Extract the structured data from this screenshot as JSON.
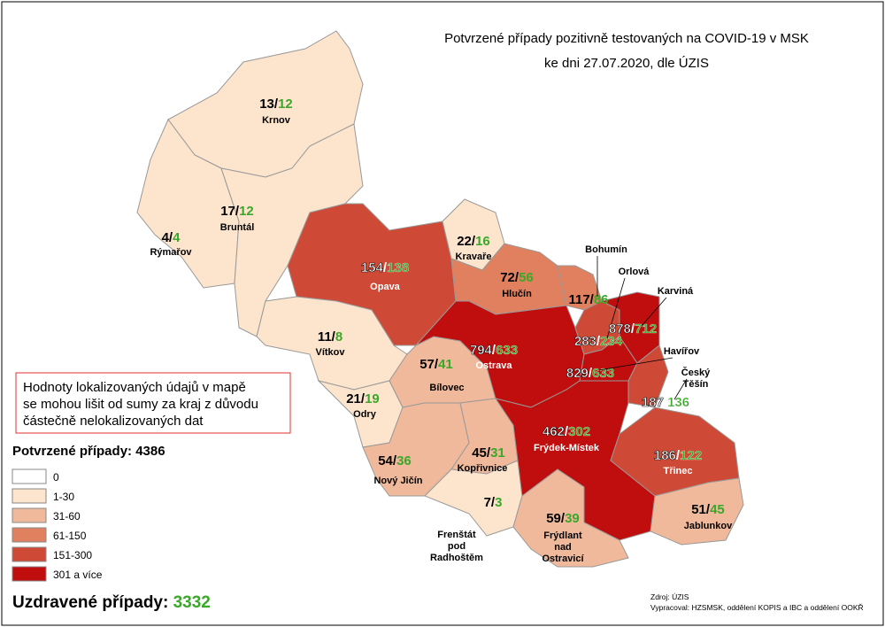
{
  "header": {
    "title_lines": [
      "Potvrzené případy pozitivně testovaných na COVID-19 v MSK",
      "ke dni 27.07.2020, dle ÚZIS"
    ]
  },
  "value_separator": "/",
  "districts": [
    {
      "name_lines": [
        "Krnov"
      ],
      "confirmed": 13,
      "recovered": 12,
      "class": 1
    },
    {
      "name_lines": [
        "Rýmařov"
      ],
      "confirmed": 4,
      "recovered": 4,
      "class": 1
    },
    {
      "name_lines": [
        "Bruntál"
      ],
      "confirmed": 17,
      "recovered": 12,
      "class": 1
    },
    {
      "name_lines": [
        "Opava"
      ],
      "confirmed": 154,
      "recovered": 138,
      "class": 4
    },
    {
      "name_lines": [
        "Kravaře"
      ],
      "confirmed": 22,
      "recovered": 16,
      "class": 1
    },
    {
      "name_lines": [
        "Hlučín"
      ],
      "confirmed": 72,
      "recovered": 56,
      "class": 3
    },
    {
      "name_lines": [
        "Vítkov"
      ],
      "confirmed": 11,
      "recovered": 8,
      "class": 1
    },
    {
      "name_lines": [
        "Odry"
      ],
      "confirmed": 21,
      "recovered": 19,
      "class": 1
    },
    {
      "name_lines": [
        "Bílovec"
      ],
      "confirmed": 57,
      "recovered": 41,
      "class": 2
    },
    {
      "name_lines": [
        "Nový Jičín"
      ],
      "confirmed": 54,
      "recovered": 36,
      "class": 2
    },
    {
      "name_lines": [
        "Kopřivnice"
      ],
      "confirmed": 45,
      "recovered": 31,
      "class": 2
    },
    {
      "name_lines": [
        "Frenštát",
        "pod",
        "Radhoštěm"
      ],
      "confirmed": 7,
      "recovered": 3,
      "class": 1
    },
    {
      "name_lines": [
        "Ostrava"
      ],
      "confirmed": 794,
      "recovered": 633,
      "class": 5
    },
    {
      "name_lines": [
        "Bohumín"
      ],
      "confirmed": 117,
      "recovered": 86,
      "class": 3
    },
    {
      "name_lines": [
        "Orlová"
      ],
      "confirmed": 283,
      "recovered": 234,
      "class": 4
    },
    {
      "name_lines": [
        "Karviná"
      ],
      "confirmed": 878,
      "recovered": 712,
      "class": 5
    },
    {
      "name_lines": [
        "Havířov"
      ],
      "confirmed": 829,
      "recovered": 633,
      "class": 5
    },
    {
      "name_lines": [
        "Český",
        "Těšín"
      ],
      "confirmed": 187,
      "recovered": 136,
      "class": 4
    },
    {
      "name_lines": [
        "Frýdek-Místek"
      ],
      "confirmed": 462,
      "recovered": 302,
      "class": 5
    },
    {
      "name_lines": [
        "Třinec"
      ],
      "confirmed": 186,
      "recovered": 122,
      "class": 4
    },
    {
      "name_lines": [
        "Jablunkov"
      ],
      "confirmed": 51,
      "recovered": 45,
      "class": 2
    },
    {
      "name_lines": [
        "Frýdlant",
        "nad",
        "Ostravicí"
      ],
      "confirmed": 59,
      "recovered": 39,
      "class": 2
    }
  ],
  "note_lines": [
    "Hodnoty lokalizovaných údajů v mapě",
    "se mohou lišit od sumy za kraj z důvodu",
    "částečně nelokalizovaných dat"
  ],
  "confirmed_total": {
    "label": "Potvrzené případy:",
    "value": 4386
  },
  "legend": [
    {
      "label": "0",
      "color": "#ffffff"
    },
    {
      "label": "1-30",
      "color": "#fde4cd"
    },
    {
      "label": "31-60",
      "color": "#f0b99b"
    },
    {
      "label": "61-150",
      "color": "#e0805f"
    },
    {
      "label": "151-300",
      "color": "#cf4a36"
    },
    {
      "label": "301 a více",
      "color": "#c00d0d"
    }
  ],
  "recovered_total": {
    "label": "Uzdravené případy:",
    "value": 3332
  },
  "source_lines": [
    "Zdroj: ÚZIS",
    "Vypracoval: HZSMSK, oddělení KOPIS a IBC a oddělení OOKŘ"
  ]
}
